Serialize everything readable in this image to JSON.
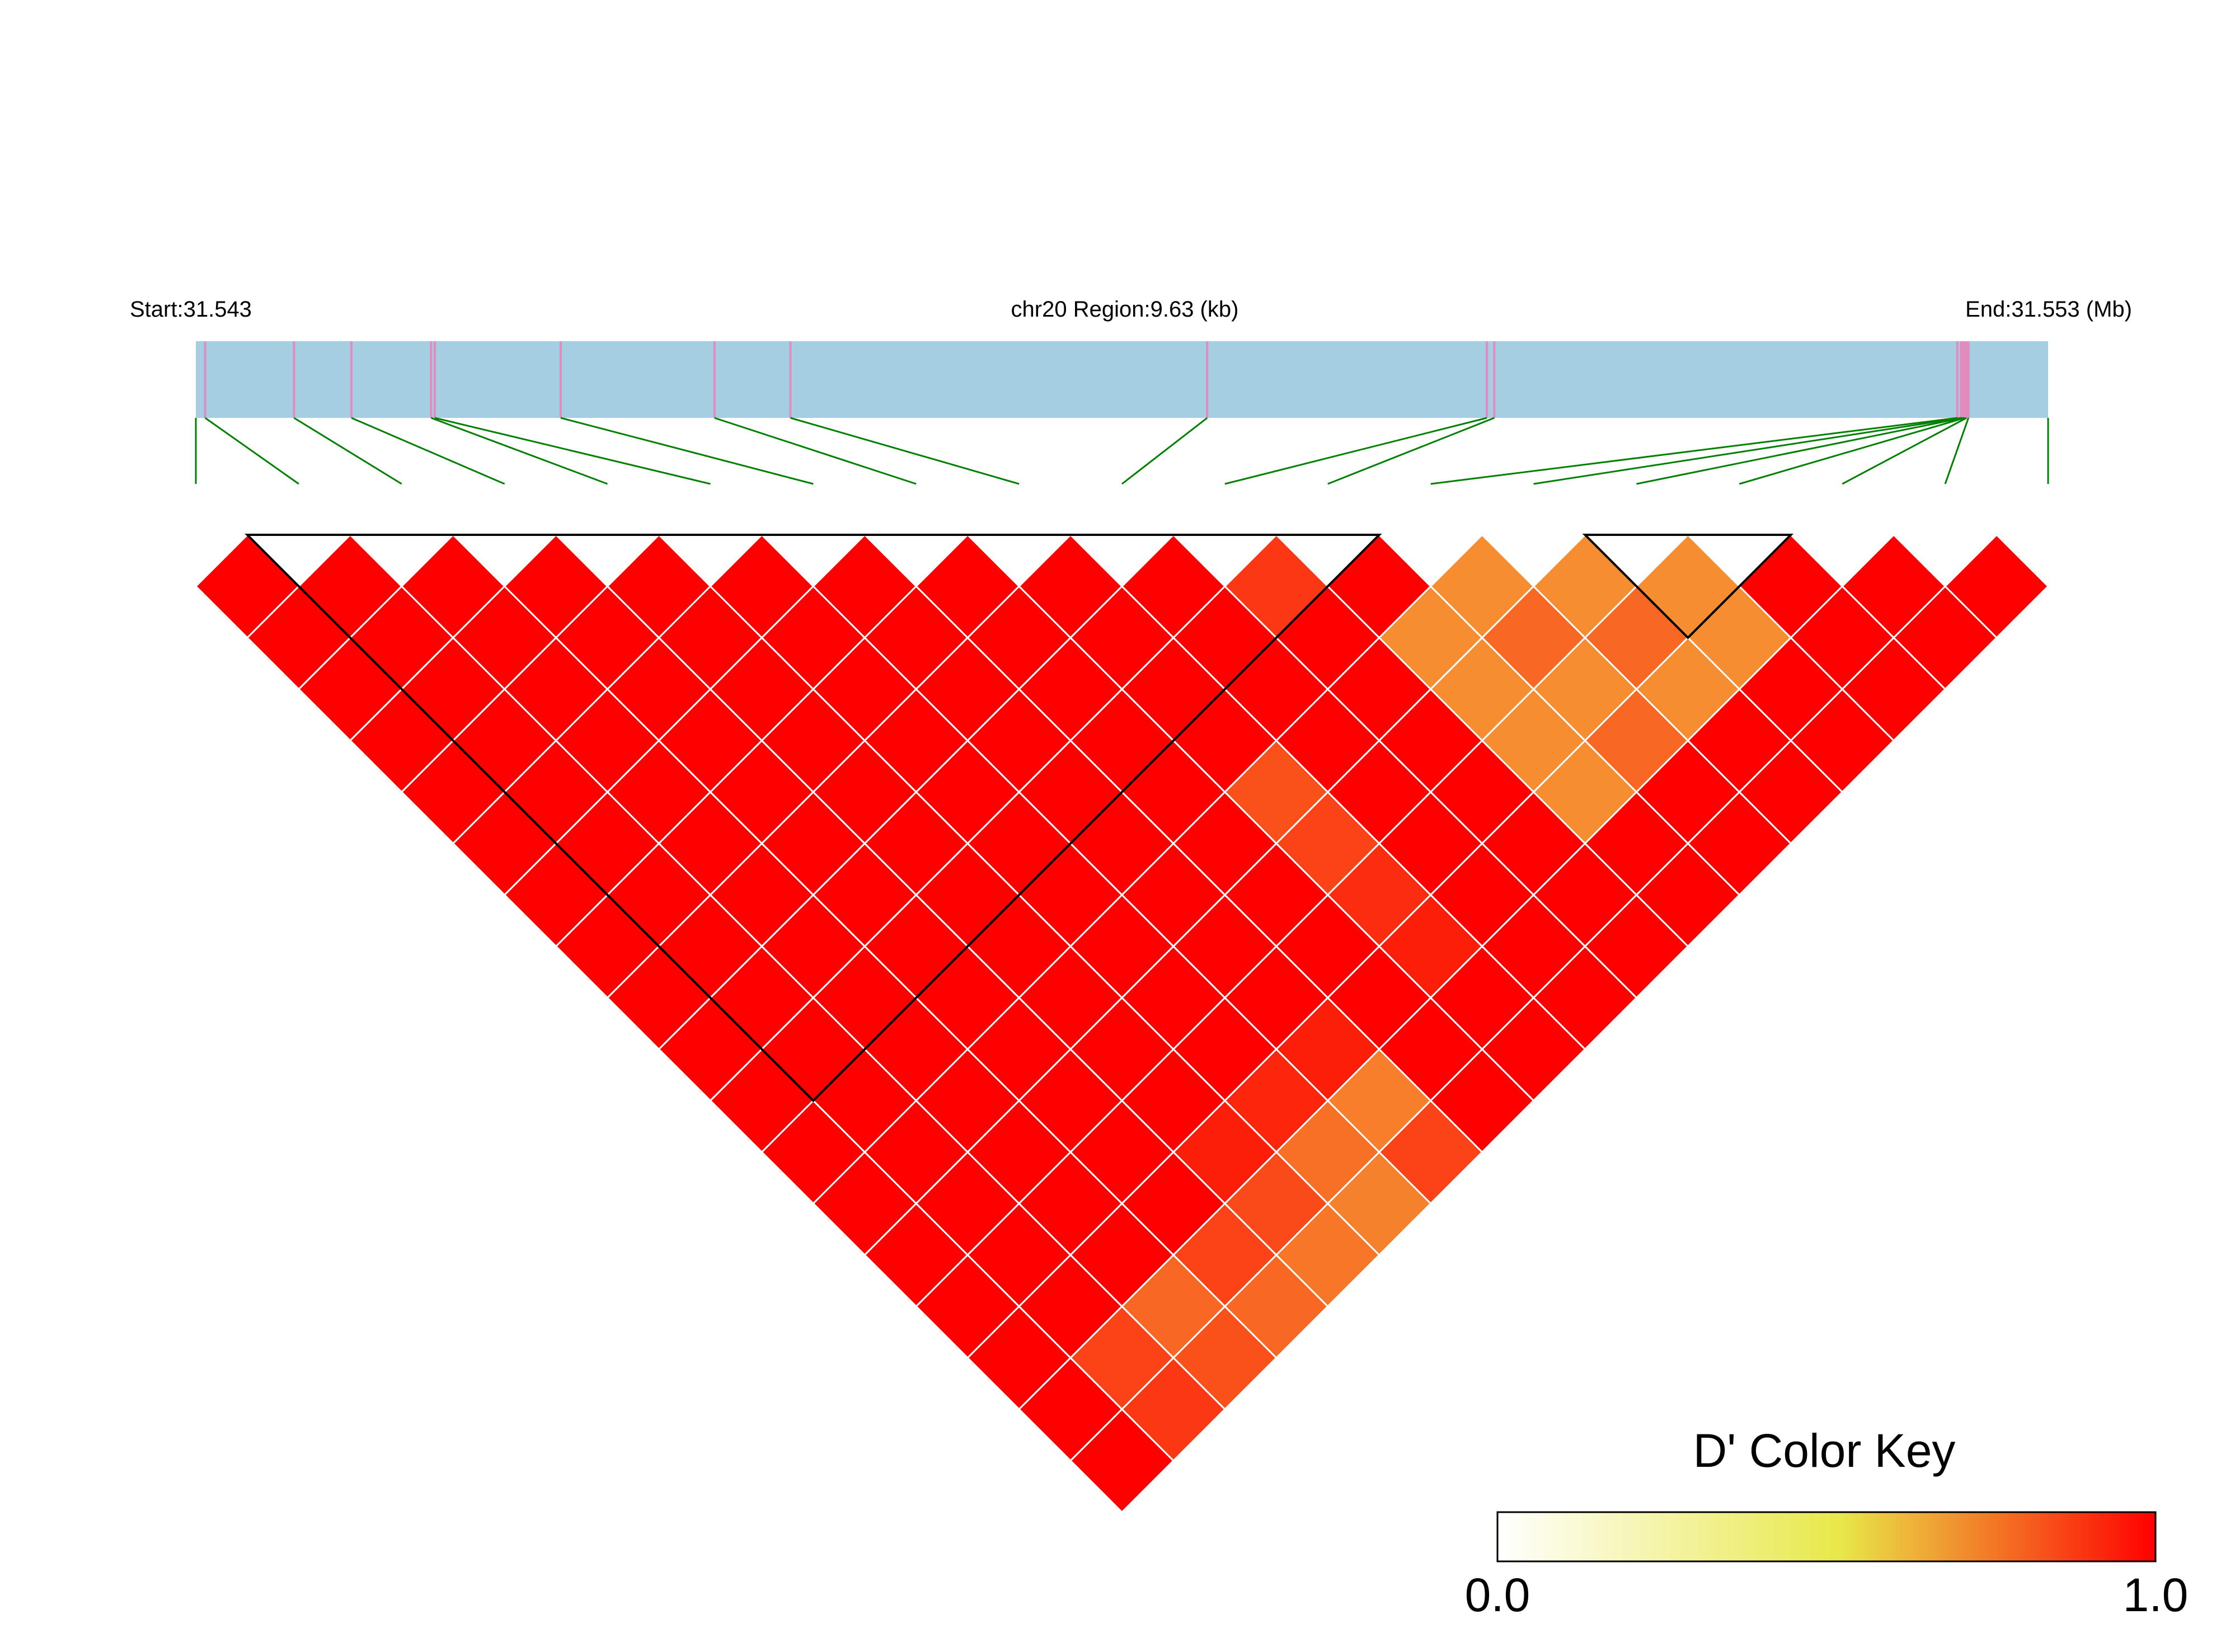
{
  "header": {
    "start_label": "Start:31.543",
    "region_label": "chr20 Region:9.63 (kb)",
    "end_label": "End:31.553 (Mb)"
  },
  "colors": {
    "track_fill": "#a6cee3",
    "snp_mark": "#e38bbf",
    "connector": "#008000",
    "cell_border": "#ffffff",
    "block_outline": "#000000",
    "key_low": "#ffffff",
    "key_mid": "#e8e84a",
    "key_high": "#ff0000"
  },
  "chart_data": {
    "type": "heatmap",
    "title": "",
    "chromosome": "chr20",
    "region_start_mb": 31.543,
    "region_end_mb": 31.553,
    "region_kb": 9.63,
    "n_snps": 19,
    "snp_fraction_positions": [
      0.0,
      0.005,
      0.053,
      0.084,
      0.127,
      0.129,
      0.197,
      0.28,
      0.321,
      0.546,
      0.697,
      0.701,
      0.951,
      0.953,
      0.954,
      0.955,
      0.956,
      0.957,
      1.0
    ],
    "ld_metric": "D'",
    "ld_value_range": [
      0,
      1
    ],
    "ld_values_default": 1.0,
    "ld_values_note": "pairs not listed in ld_exceptions have D' = 1.0",
    "ld_exceptions": [
      {
        "i": 10,
        "j": 11,
        "value": 0.85
      },
      {
        "i": 11,
        "j": 13,
        "value": 0.62
      },
      {
        "i": 12,
        "j": 13,
        "value": 0.62
      },
      {
        "i": 11,
        "j": 14,
        "value": 0.62
      },
      {
        "i": 12,
        "j": 14,
        "value": 0.72
      },
      {
        "i": 13,
        "j": 14,
        "value": 0.62
      },
      {
        "i": 11,
        "j": 15,
        "value": 0.62
      },
      {
        "i": 12,
        "j": 15,
        "value": 0.62
      },
      {
        "i": 13,
        "j": 15,
        "value": 0.72
      },
      {
        "i": 14,
        "j": 15,
        "value": 0.62
      },
      {
        "i": 11,
        "j": 16,
        "value": 0.62
      },
      {
        "i": 12,
        "j": 16,
        "value": 0.72
      },
      {
        "i": 13,
        "j": 16,
        "value": 0.62
      },
      {
        "i": 14,
        "j": 16,
        "value": 0.62
      },
      {
        "i": 8,
        "j": 13,
        "value": 0.78
      },
      {
        "i": 8,
        "j": 14,
        "value": 0.82
      },
      {
        "i": 8,
        "j": 15,
        "value": 0.88
      },
      {
        "i": 8,
        "j": 16,
        "value": 0.92
      },
      {
        "i": 6,
        "j": 16,
        "value": 0.92
      },
      {
        "i": 5,
        "j": 16,
        "value": 0.9
      },
      {
        "i": 4,
        "j": 16,
        "value": 0.92
      },
      {
        "i": 6,
        "j": 17,
        "value": 0.66
      },
      {
        "i": 6,
        "j": 18,
        "value": 0.82
      },
      {
        "i": 5,
        "j": 17,
        "value": 0.7
      },
      {
        "i": 5,
        "j": 18,
        "value": 0.65
      },
      {
        "i": 4,
        "j": 17,
        "value": 0.8
      },
      {
        "i": 4,
        "j": 18,
        "value": 0.68
      },
      {
        "i": 3,
        "j": 17,
        "value": 0.82
      },
      {
        "i": 3,
        "j": 18,
        "value": 0.72
      },
      {
        "i": 2,
        "j": 17,
        "value": 0.72
      },
      {
        "i": 2,
        "j": 18,
        "value": 0.78
      },
      {
        "i": 1,
        "j": 17,
        "value": 0.82
      },
      {
        "i": 1,
        "j": 18,
        "value": 0.85
      }
    ],
    "haplotype_blocks": [
      {
        "from": 0,
        "to": 12
      },
      {
        "from": 13,
        "to": 16
      }
    ],
    "color_key": {
      "title": "D' Color Key",
      "min_label": "0.0",
      "max_label": "1.0",
      "range": [
        0,
        1
      ]
    }
  }
}
